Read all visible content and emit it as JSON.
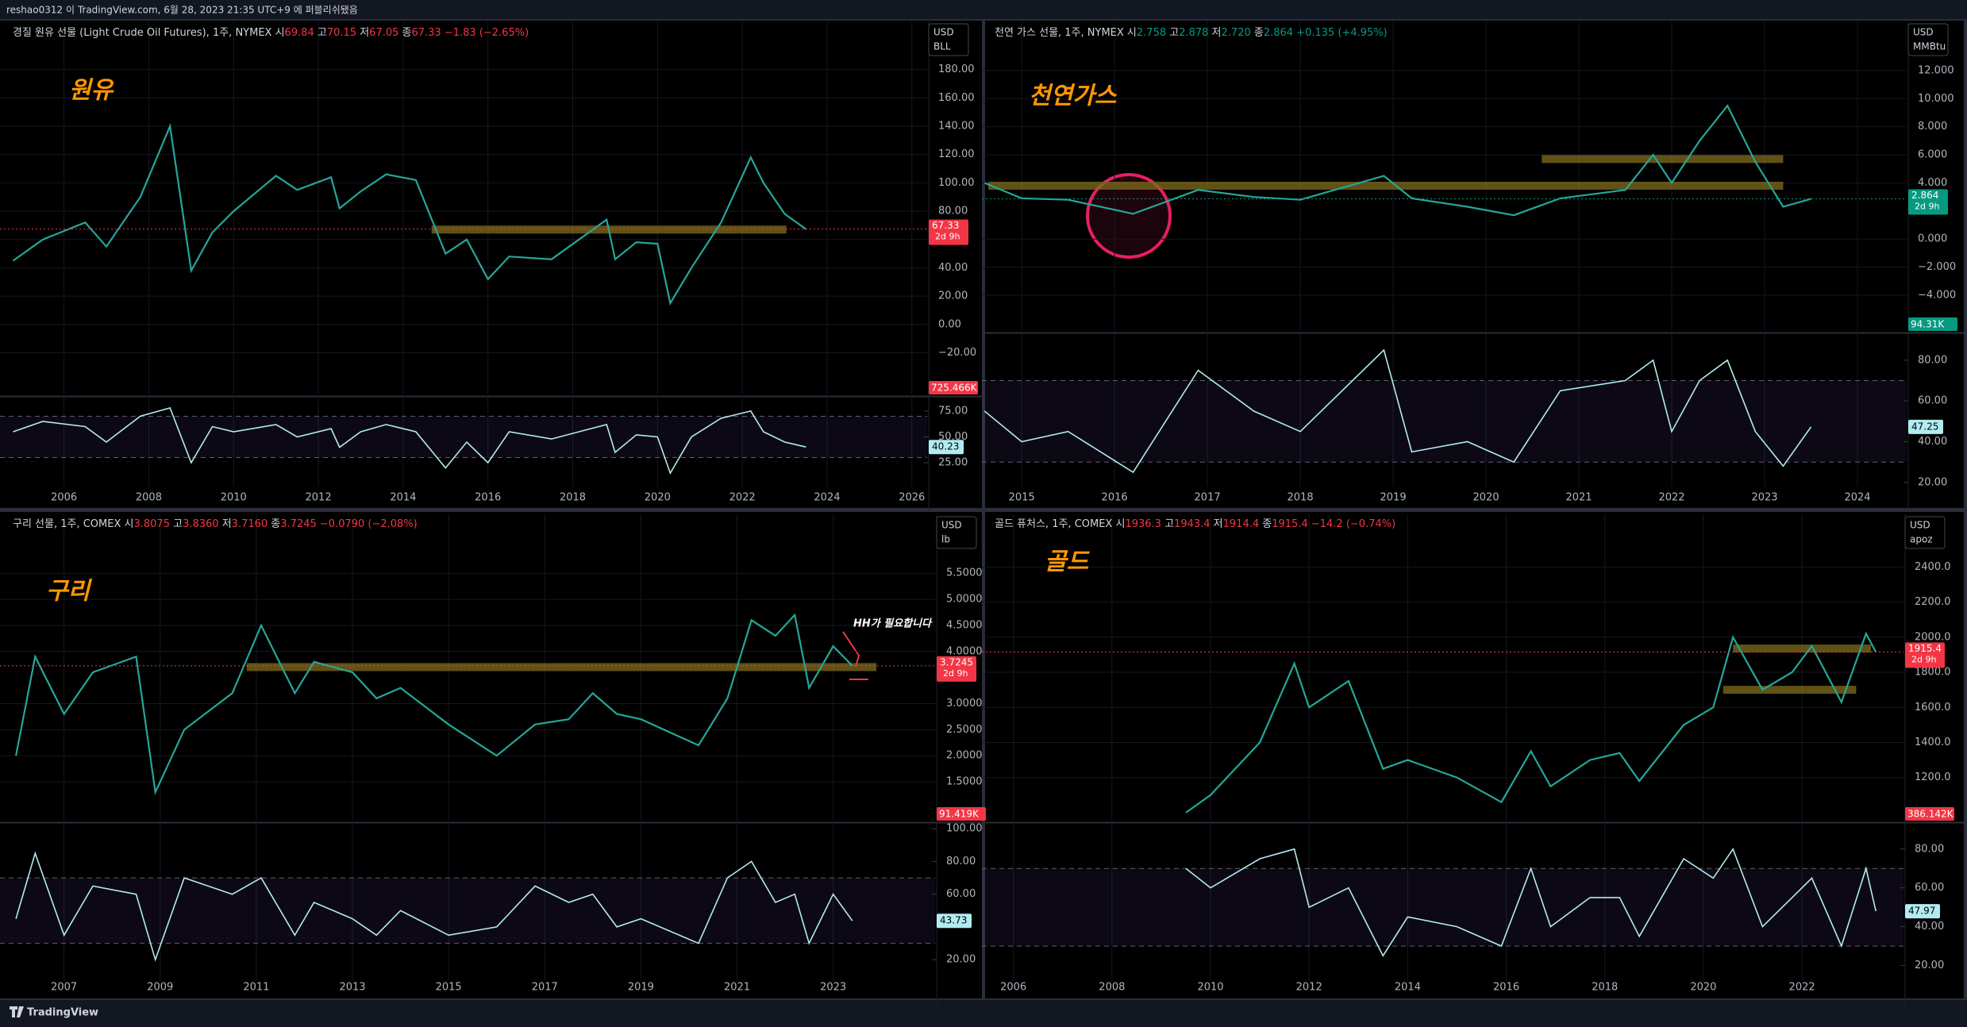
{
  "header": "reshao0312 이 TradingView.com, 6월 28, 2023 21:35 UTC+9 에 퍼블리쉬됐음",
  "footer": "TradingView",
  "chart_data": [
    {
      "type": "line",
      "title": "원유",
      "legend": "경질 원유 선물 (Light Crude Oil Futures), 1주, NYMEX ",
      "ohlc": [
        "시",
        "69.84",
        " 고",
        "70.15",
        " 저",
        "67.05",
        " 종",
        "67.33",
        " −1.83 (−2.65%)"
      ],
      "units": [
        "USD",
        "BLL"
      ],
      "countdown": "2d 9h",
      "volume_label": "725.466K",
      "color": "#26a69a",
      "rsi_color": "#b2ebf2",
      "last_color": "#f23645",
      "xlim": [
        2004.64,
        2026.36
      ],
      "xticks": [
        2006,
        2008,
        2010,
        2012,
        2014,
        2016,
        2018,
        2020,
        2022,
        2024,
        2026
      ],
      "ylim": [
        -50,
        214
      ],
      "yticks": [
        {
          "value": -20,
          "label": "−20.00"
        },
        {
          "value": 0,
          "label": "0.00"
        },
        {
          "value": 20,
          "label": "20.00"
        },
        {
          "value": 40,
          "label": "40.00"
        },
        {
          "value": 60,
          "label": "60.00"
        },
        {
          "value": 80,
          "label": "80.00"
        },
        {
          "value": 100,
          "label": "100.00"
        },
        {
          "value": 120,
          "label": "120.00"
        },
        {
          "value": 140,
          "label": "140.00"
        },
        {
          "value": 160,
          "label": "160.00"
        },
        {
          "value": 180,
          "label": "180.00"
        }
      ],
      "x": [
        2004.8,
        2005.5,
        2006.5,
        2007,
        2007.8,
        2008.5,
        2009,
        2009.5,
        2010,
        2011,
        2011.5,
        2012.3,
        2012.5,
        2013,
        2013.6,
        2014.3,
        2015,
        2015.5,
        2016,
        2016.5,
        2017.5,
        2018.8,
        2019,
        2019.5,
        2020,
        2020.3,
        2020.8,
        2021.5,
        2022.2,
        2022.5,
        2023,
        2023.5
      ],
      "values": [
        45,
        60,
        72,
        55,
        90,
        140,
        38,
        65,
        80,
        105,
        95,
        104,
        82,
        94,
        106,
        102,
        50,
        60,
        32,
        48,
        46,
        74,
        46,
        58,
        57,
        15,
        40,
        72,
        118,
        100,
        78,
        67.33
      ],
      "rsi_values": [
        55,
        65,
        60,
        45,
        70,
        78,
        25,
        60,
        55,
        62,
        50,
        58,
        40,
        55,
        62,
        55,
        20,
        45,
        25,
        55,
        48,
        62,
        35,
        52,
        50,
        15,
        50,
        68,
        75,
        55,
        45,
        40.23
      ],
      "rsi_ylim": [
        2,
        88
      ],
      "rsi_levels": [
        30,
        70
      ],
      "rsi_yticks": [
        {
          "value": 25,
          "label": "25.00"
        },
        {
          "value": 50,
          "label": "50.00"
        },
        {
          "value": 75,
          "label": "75.00"
        }
      ],
      "zones": [
        {
          "y": 67,
          "x0": 2014.67,
          "x1": 2023.04
        }
      ]
    },
    {
      "type": "line",
      "title": "천연가스",
      "legend": "천연 가스 선물, 1주, NYMEX ",
      "ohlc": [
        "시",
        "2.758",
        " 고",
        "2.878",
        " 저",
        "2.720",
        " 종",
        "2.864",
        " +0.135 (+4.95%)"
      ],
      "units": [
        "USD",
        "MMBtu"
      ],
      "countdown": "2d 9h",
      "volume_label": "94.31K",
      "color": "#26a69a",
      "rsi_color": "#b2ebf2",
      "last_color": "#089981",
      "xlim": [
        2014.64,
        2024.53
      ],
      "xticks": [
        2015,
        2016,
        2017,
        2018,
        2019,
        2020,
        2021,
        2022,
        2023,
        2024
      ],
      "ylim": [
        -6.6,
        15.5
      ],
      "yticks": [
        {
          "value": -4,
          "label": "−4.000"
        },
        {
          "value": -2,
          "label": "−2.000"
        },
        {
          "value": 0,
          "label": "0.000"
        },
        {
          "value": 4,
          "label": "4.000"
        },
        {
          "value": 6,
          "label": "6.000"
        },
        {
          "value": 8,
          "label": "8.000"
        },
        {
          "value": 10,
          "label": "10.000"
        },
        {
          "value": 12,
          "label": "12.000"
        }
      ],
      "x": [
        2014.6,
        2015,
        2015.5,
        2016.2,
        2016.9,
        2017.5,
        2018,
        2018.9,
        2019.2,
        2019.8,
        2020.3,
        2020.8,
        2021.5,
        2021.8,
        2022,
        2022.3,
        2022.6,
        2022.9,
        2023.2,
        2023.5
      ],
      "values": [
        4.0,
        2.9,
        2.8,
        1.8,
        3.5,
        3.0,
        2.8,
        4.5,
        2.9,
        2.3,
        1.7,
        2.9,
        3.5,
        6.0,
        4.0,
        7.0,
        9.5,
        5.5,
        2.3,
        2.864
      ],
      "rsi_values": [
        55,
        40,
        45,
        25,
        75,
        55,
        45,
        85,
        35,
        40,
        30,
        65,
        70,
        80,
        45,
        70,
        80,
        45,
        28,
        47.25
      ],
      "rsi_ylim": [
        18,
        92
      ],
      "rsi_levels": [
        30,
        70
      ],
      "rsi_yticks": [
        {
          "value": 20,
          "label": "20.00"
        },
        {
          "value": 40,
          "label": "40.00"
        },
        {
          "value": 60,
          "label": "60.00"
        },
        {
          "value": 80,
          "label": "80.00"
        }
      ],
      "zones": [
        {
          "y": 3.8,
          "x0": 2014.64,
          "x1": 2023.2
        },
        {
          "y": 5.7,
          "x0": 2020.6,
          "x1": 2023.2
        }
      ]
    },
    {
      "type": "line",
      "title": "구리",
      "annotation": "HH가 필요합니다",
      "legend": "구리 선물, 1주, COMEX ",
      "ohlc": [
        "시",
        "3.8075",
        " 고",
        "3.8360",
        " 저",
        "3.7160",
        " 종",
        "3.7245",
        " −0.0790 (−2.08%)"
      ],
      "units": [
        "USD",
        "lb"
      ],
      "countdown": "2d 9h",
      "volume_label": "91.419K",
      "color": "#26a69a",
      "rsi_color": "#b2ebf2",
      "last_color": "#f23645",
      "xlim": [
        2005.8,
        2025.12
      ],
      "xticks": [
        2007,
        2009,
        2011,
        2013,
        2015,
        2017,
        2019,
        2021,
        2023
      ],
      "ylim": [
        0.74,
        6.63
      ],
      "yticks": [
        {
          "value": 1.5,
          "label": "1.5000"
        },
        {
          "value": 2,
          "label": "2.0000"
        },
        {
          "value": 2.5,
          "label": "2.5000"
        },
        {
          "value": 3,
          "label": "3.0000"
        },
        {
          "value": 4,
          "label": "4.0000"
        },
        {
          "value": 4.5,
          "label": "4.5000"
        },
        {
          "value": 5,
          "label": "5.0000"
        },
        {
          "value": 5.5,
          "label": "5.5000"
        }
      ],
      "x": [
        2006,
        2006.4,
        2007,
        2007.6,
        2008.5,
        2008.9,
        2009.5,
        2010.5,
        2011.1,
        2011.8,
        2012.2,
        2013,
        2013.5,
        2014,
        2015,
        2016,
        2016.8,
        2017.5,
        2018,
        2018.5,
        2019,
        2020.2,
        2020.8,
        2021.3,
        2021.8,
        2022.2,
        2022.5,
        2023,
        2023.4
      ],
      "values": [
        2.0,
        3.9,
        2.8,
        3.6,
        3.9,
        1.3,
        2.5,
        3.2,
        4.5,
        3.2,
        3.8,
        3.6,
        3.1,
        3.3,
        2.6,
        2.0,
        2.6,
        2.7,
        3.2,
        2.8,
        2.7,
        2.2,
        3.1,
        4.6,
        4.3,
        4.7,
        3.3,
        4.1,
        3.7245
      ],
      "rsi_values": [
        45,
        85,
        35,
        65,
        60,
        20,
        70,
        60,
        70,
        35,
        55,
        45,
        35,
        50,
        35,
        40,
        65,
        55,
        60,
        40,
        45,
        30,
        70,
        80,
        55,
        60,
        30,
        60,
        43.73
      ],
      "rsi_ylim": [
        7,
        103
      ],
      "rsi_levels": [
        30,
        70
      ],
      "rsi_yticks": [
        {
          "value": 20,
          "label": "20.00"
        },
        {
          "value": 60,
          "label": "60.00"
        },
        {
          "value": 80,
          "label": "80.00"
        },
        {
          "value": 100,
          "label": "100.00"
        }
      ],
      "zones": [
        {
          "y": 3.7,
          "x0": 2010.8,
          "x1": 2023.9
        }
      ]
    },
    {
      "type": "line",
      "title": "골드",
      "legend": "골드 퓨처스, 1주, COMEX ",
      "ohlc": [
        "시",
        "1936.3",
        " 고",
        "1943.4",
        " 저",
        "1914.4",
        " 종",
        "1915.4",
        " −14.2 (−0.74%)"
      ],
      "units": [
        "USD",
        "apoz"
      ],
      "countdown": "2d 9h",
      "volume_label": "386.142K",
      "color": "#26a69a",
      "rsi_color": "#b2ebf2",
      "last_color": "#f23645",
      "xlim": [
        2005.49,
        2024.06
      ],
      "xticks": [
        2006,
        2008,
        2010,
        2012,
        2014,
        2016,
        2018,
        2020,
        2022
      ],
      "ylim": [
        950,
        2700
      ],
      "yticks": [
        {
          "value": 1200,
          "label": "1200.0"
        },
        {
          "value": 1400,
          "label": "1400.0"
        },
        {
          "value": 1600,
          "label": "1600.0"
        },
        {
          "value": 1800,
          "label": "1800.0"
        },
        {
          "value": 2000,
          "label": "2000.0"
        },
        {
          "value": 2200,
          "label": "2200.0"
        },
        {
          "value": 2400,
          "label": "2400.0"
        }
      ],
      "x": [
        2009.5,
        2010,
        2011,
        2011.7,
        2012,
        2012.8,
        2013.5,
        2014,
        2015,
        2015.9,
        2016.5,
        2016.9,
        2017.7,
        2018.3,
        2018.7,
        2019.6,
        2020.2,
        2020.6,
        2021.2,
        2021.8,
        2022.2,
        2022.8,
        2023.3,
        2023.5
      ],
      "values": [
        1000,
        1100,
        1400,
        1850,
        1600,
        1750,
        1250,
        1300,
        1200,
        1060,
        1350,
        1150,
        1300,
        1340,
        1180,
        1500,
        1600,
        2000,
        1700,
        1800,
        1950,
        1630,
        2020,
        1915.4
      ],
      "rsi_values": [
        70,
        60,
        75,
        80,
        50,
        60,
        25,
        45,
        40,
        30,
        70,
        40,
        55,
        55,
        35,
        75,
        65,
        80,
        40,
        55,
        65,
        30,
        70,
        47.97
      ],
      "rsi_ylim": [
        12,
        93
      ],
      "rsi_levels": [
        30,
        70
      ],
      "rsi_yticks": [
        {
          "value": 20,
          "label": "20.00"
        },
        {
          "value": 40,
          "label": "40.00"
        },
        {
          "value": 60,
          "label": "60.00"
        },
        {
          "value": 80,
          "label": "80.00"
        }
      ],
      "zones": [
        {
          "y": 1935,
          "x0": 2020.6,
          "x1": 2023.4
        },
        {
          "y": 1700,
          "x0": 2020.4,
          "x1": 2023.1
        }
      ]
    }
  ]
}
